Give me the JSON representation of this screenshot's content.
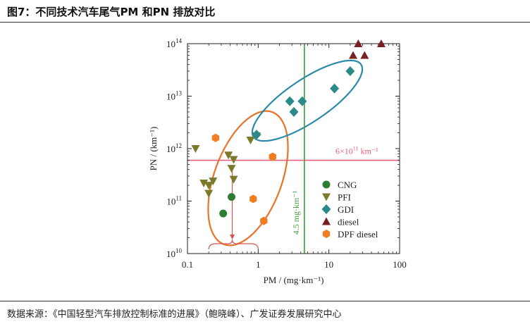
{
  "header": {
    "title": "图7：不同技术汽车尾气PM 和PN 排放对比"
  },
  "source": {
    "text": "数据来源：《中国轻型汽车排放控制标准的进展》（鲍晓峰）、广发证券发展研究中心"
  },
  "colors": {
    "CNG": "#2e7d32",
    "PFI": "#7a7a2a",
    "GDI": "#2b8a87",
    "diesel": "#7a1f22",
    "DPF diesel": "#f07d22",
    "pn_line": "#e8607a",
    "pm_line": "#3e9b3e",
    "ellipse_orange": "#e8742a",
    "ellipse_teal": "#2b8aa8"
  },
  "chart_data": {
    "type": "scatter",
    "xscale": "log",
    "yscale": "log",
    "xlabel": "PM / (mg·km⁻¹)",
    "ylabel": "PN / (km⁻¹)",
    "xlim": [
      0.1,
      100
    ],
    "ylim": [
      10000000000.0,
      100000000000000.0
    ],
    "x_ticks": [
      {
        "value": 0.1,
        "label": "0.1"
      },
      {
        "value": 1,
        "label": "1"
      },
      {
        "value": 10,
        "label": "10"
      },
      {
        "value": 100,
        "label": "100"
      }
    ],
    "y_ticks": [
      {
        "value": 10000000000.0,
        "base": "10",
        "exp": "10"
      },
      {
        "value": 100000000000.0,
        "base": "10",
        "exp": "11"
      },
      {
        "value": 1000000000000.0,
        "base": "10",
        "exp": "12"
      },
      {
        "value": 10000000000000.0,
        "base": "10",
        "exp": "13"
      },
      {
        "value": 100000000000000.0,
        "base": "10",
        "exp": "14"
      }
    ],
    "series": [
      {
        "name": "CNG",
        "marker": "circle",
        "points": [
          [
            0.32,
            58000000000.0
          ],
          [
            0.42,
            120000000000.0
          ]
        ]
      },
      {
        "name": "PFI",
        "marker": "triangle-down",
        "points": [
          [
            0.13,
            1000000000000.0
          ],
          [
            0.17,
            220000000000.0
          ],
          [
            0.2,
            200000000000.0
          ],
          [
            0.23,
            240000000000.0
          ],
          [
            0.2,
            140000000000.0
          ],
          [
            0.38,
            750000000000.0
          ],
          [
            0.45,
            620000000000.0
          ],
          [
            0.42,
            420000000000.0
          ],
          [
            0.45,
            260000000000.0
          ],
          [
            0.78,
            1450000000000.0
          ],
          [
            0.95,
            1750000000000.0
          ]
        ]
      },
      {
        "name": "GDI",
        "marker": "diamond",
        "points": [
          [
            0.95,
            1850000000000.0
          ],
          [
            2.8,
            8000000000000.0
          ],
          [
            3.2,
            5000000000000.0
          ],
          [
            4.2,
            8000000000000.0
          ],
          [
            12,
            14000000000000.0
          ],
          [
            20,
            30000000000000.0
          ]
        ]
      },
      {
        "name": "diesel",
        "marker": "triangle-up",
        "points": [
          [
            22,
            60000000000000.0
          ],
          [
            26,
            100000000000000.0
          ],
          [
            32,
            60000000000000.0
          ],
          [
            55,
            100000000000000.0
          ]
        ]
      },
      {
        "name": "DPF diesel",
        "marker": "hexagon",
        "points": [
          [
            0.25,
            1600000000000.0
          ],
          [
            0.85,
            110000000000.0
          ],
          [
            1.2,
            42000000000.0
          ],
          [
            1.6,
            700000000000.0
          ]
        ]
      }
    ],
    "reference_lines": [
      {
        "orientation": "horizontal",
        "value": 600000000000.0,
        "label_base": "6×10",
        "label_exp": "11",
        "label_tail": " km⁻¹"
      },
      {
        "orientation": "vertical",
        "value": 4.5,
        "label": "4.5 mg·km⁻¹"
      }
    ],
    "legend": {
      "placement": "lower-right-inside"
    }
  }
}
